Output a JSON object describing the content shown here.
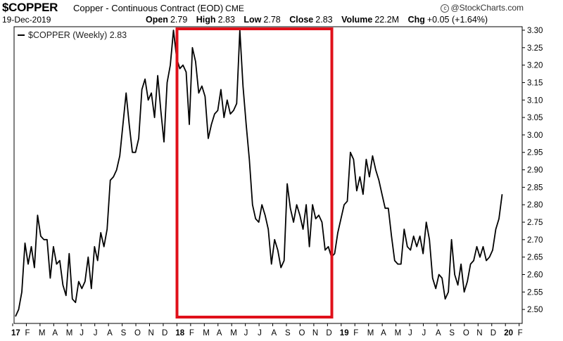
{
  "header": {
    "symbol": "$COPPER",
    "description": "Copper - Continuous Contract (EOD)",
    "exchange": "CME",
    "date": "19-Dec-2019",
    "stats": [
      {
        "label": "Open",
        "value": "2.79"
      },
      {
        "label": "High",
        "value": "2.83"
      },
      {
        "label": "Low",
        "value": "2.78"
      },
      {
        "label": "Close",
        "value": "2.83"
      },
      {
        "label": "Volume",
        "value": "22.2M"
      },
      {
        "label": "Chg",
        "value": "+0.05 (+1.64%)"
      }
    ],
    "brand": "@StockCharts.com",
    "brand_icon": "copyright-icon"
  },
  "colors": {
    "line": "#000000",
    "highlight": "#e0101a",
    "grid": "#d8d8d8"
  },
  "chart_data": {
    "type": "line",
    "legend": "$COPPER (Weekly) 2.83",
    "legend_placement": "top-left",
    "ylim": [
      2.46,
      3.31
    ],
    "yticks": [
      "2.50",
      "2.55",
      "2.60",
      "2.65",
      "2.70",
      "2.75",
      "2.80",
      "2.85",
      "2.90",
      "2.95",
      "3.00",
      "3.05",
      "3.10",
      "3.15",
      "3.20",
      "3.25",
      "3.30"
    ],
    "xticks": [
      "17",
      "F",
      "M",
      "A",
      "M",
      "J",
      "J",
      "A",
      "S",
      "O",
      "N",
      "D",
      "18",
      "F",
      "M",
      "A",
      "M",
      "J",
      "J",
      "A",
      "S",
      "O",
      "N",
      "D",
      "19",
      "F",
      "M",
      "A",
      "M",
      "J",
      "J",
      "A",
      "S",
      "O",
      "N",
      "D",
      "20",
      "F"
    ],
    "xtick_bold": [
      "17",
      "18",
      "19",
      "20"
    ],
    "grid": false,
    "highlight_box": {
      "from_week": 50,
      "to_week": 99
    },
    "series": [
      {
        "values": [
          2.48,
          2.5,
          2.55,
          2.69,
          2.63,
          2.68,
          2.62,
          2.77,
          2.71,
          2.7,
          2.7,
          2.59,
          2.68,
          2.63,
          2.64,
          2.57,
          2.54,
          2.66,
          2.53,
          2.52,
          2.58,
          2.56,
          2.58,
          2.65,
          2.56,
          2.68,
          2.64,
          2.72,
          2.68,
          2.73,
          2.87,
          2.88,
          2.9,
          2.94,
          3.03,
          3.12,
          3.03,
          2.95,
          2.95,
          2.99,
          3.13,
          3.16,
          3.1,
          3.12,
          3.05,
          3.17,
          3.07,
          2.98,
          3.15,
          3.2,
          3.3,
          3.22,
          3.19,
          3.2,
          3.18,
          3.03,
          3.25,
          3.21,
          3.12,
          3.14,
          3.11,
          2.99,
          3.03,
          3.06,
          3.07,
          3.13,
          3.05,
          3.1,
          3.06,
          3.07,
          3.09,
          3.3,
          3.14,
          3.03,
          2.93,
          2.8,
          2.76,
          2.75,
          2.8,
          2.77,
          2.73,
          2.63,
          2.7,
          2.67,
          2.62,
          2.64,
          2.86,
          2.79,
          2.75,
          2.8,
          2.77,
          2.73,
          2.8,
          2.68,
          2.8,
          2.76,
          2.77,
          2.75,
          2.67,
          2.68,
          2.65,
          2.66,
          2.72,
          2.76,
          2.8,
          2.81,
          2.95,
          2.93,
          2.84,
          2.88,
          2.83,
          2.93,
          2.88,
          2.94,
          2.9,
          2.87,
          2.83,
          2.79,
          2.79,
          2.71,
          2.64,
          2.63,
          2.63,
          2.73,
          2.68,
          2.67,
          2.71,
          2.68,
          2.71,
          2.66,
          2.75,
          2.7,
          2.59,
          2.56,
          2.6,
          2.59,
          2.53,
          2.55,
          2.7,
          2.6,
          2.57,
          2.63,
          2.55,
          2.58,
          2.63,
          2.64,
          2.68,
          2.65,
          2.68,
          2.64,
          2.65,
          2.67,
          2.73,
          2.76,
          2.83
        ]
      }
    ]
  }
}
